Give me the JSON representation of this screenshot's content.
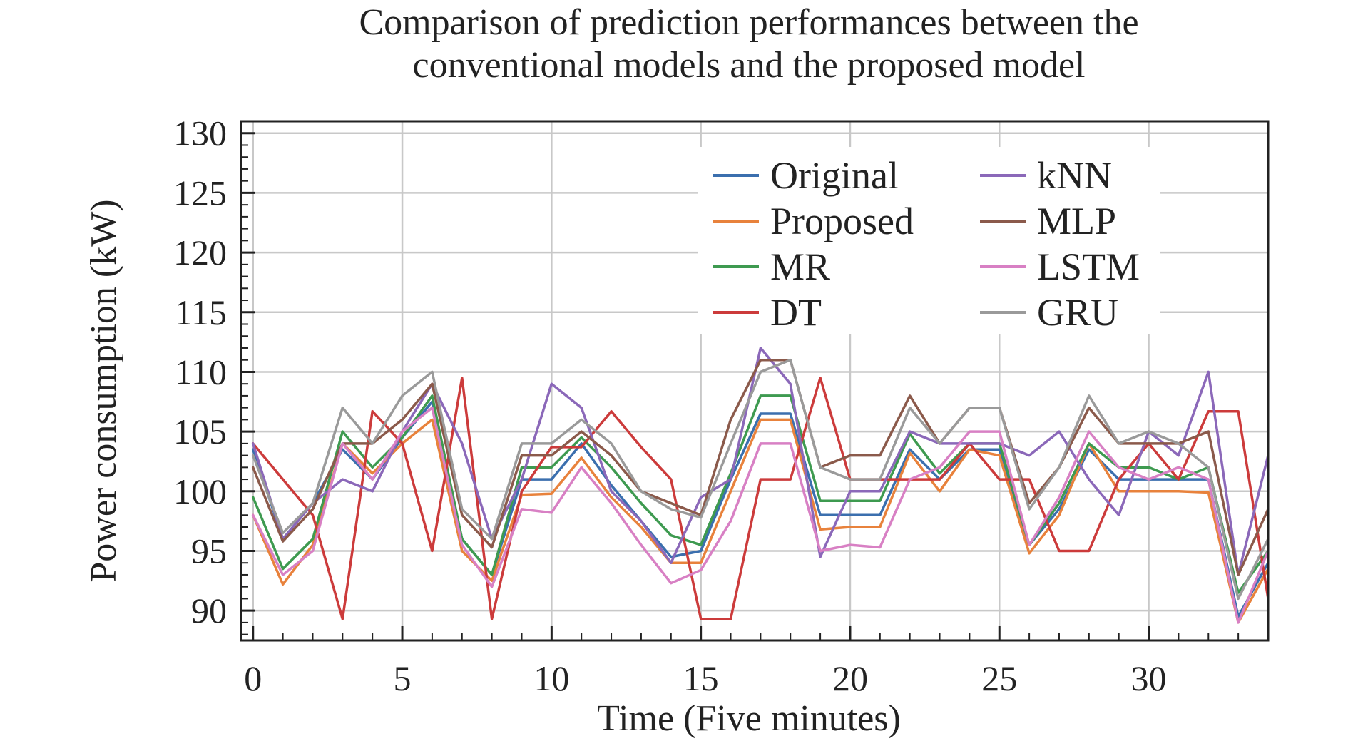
{
  "chart_data": {
    "type": "line",
    "title_lines": [
      "Comparison of prediction performances between the",
      "conventional models and the proposed model"
    ],
    "xlabel": "Time (Five minutes)",
    "ylabel": "Power consumption (kW)",
    "xlim": [
      -0.4,
      34
    ],
    "ylim": [
      87.5,
      131
    ],
    "x_ticks": [
      0,
      5,
      10,
      15,
      20,
      25,
      30
    ],
    "y_ticks": [
      90,
      95,
      100,
      105,
      110,
      115,
      120,
      125,
      130
    ],
    "grid": true,
    "legend_position": "top-right",
    "legend_columns": 2,
    "x": [
      0,
      1,
      2,
      3,
      4,
      5,
      6,
      7,
      8,
      9,
      10,
      11,
      12,
      13,
      14,
      15,
      16,
      17,
      18,
      19,
      20,
      21,
      22,
      23,
      24,
      25,
      26,
      27,
      28,
      29,
      30,
      31,
      32,
      33,
      34
    ],
    "series": [
      {
        "name": "Original",
        "color": "#3b6fae",
        "values": [
          103.5,
          96,
          99,
          103.5,
          101,
          104.5,
          107.5,
          96,
          93,
          101,
          101,
          104,
          100.5,
          97.5,
          94.5,
          95,
          101,
          106.5,
          106.5,
          98,
          98,
          98,
          103.5,
          101,
          103.5,
          103.5,
          95.5,
          98.5,
          103.5,
          101,
          101,
          101,
          101,
          89.5,
          94
        ]
      },
      {
        "name": "Proposed",
        "color": "#e8823c",
        "values": [
          98,
          92.2,
          95.5,
          104,
          101.5,
          104,
          106,
          95,
          92.5,
          99.7,
          99.8,
          102.8,
          99.5,
          97,
          94,
          94,
          100,
          106,
          106,
          96.8,
          97,
          97,
          103.2,
          100,
          103.5,
          103,
          94.8,
          98,
          104,
          100,
          100,
          100,
          99.9,
          89,
          93.5
        ]
      },
      {
        "name": "MR",
        "color": "#3e9a50",
        "values": [
          99.5,
          93.5,
          96,
          105,
          102,
          104.5,
          108,
          96,
          93,
          102,
          102,
          104.5,
          102,
          99,
          96.3,
          95.5,
          101.5,
          108,
          108,
          99.2,
          99.2,
          99.2,
          104.8,
          101.5,
          104,
          104,
          95.5,
          99,
          104,
          102,
          102,
          101,
          102,
          91.5,
          95
        ]
      },
      {
        "name": "DT",
        "color": "#cc3b3b",
        "values": [
          104,
          101,
          98,
          89.3,
          106.7,
          104,
          95,
          109.5,
          89.3,
          100,
          103.7,
          103.7,
          106.7,
          103.7,
          101,
          89.3,
          89.3,
          101,
          101,
          109.5,
          101,
          101,
          101,
          101,
          104,
          101,
          101,
          95,
          95,
          101,
          104,
          101,
          106.7,
          106.7,
          91
        ]
      },
      {
        "name": "kNN",
        "color": "#8b68b9",
        "values": [
          104,
          96,
          99,
          101,
          100,
          105,
          109,
          104,
          96,
          101,
          109,
          107,
          100,
          97.5,
          94,
          99.5,
          101,
          112,
          109,
          94.5,
          100,
          100,
          105,
          104,
          104,
          104,
          103,
          105,
          101,
          98,
          105,
          103,
          110,
          93,
          103
        ]
      },
      {
        "name": "MLP",
        "color": "#8b5a4b",
        "values": [
          102,
          95.8,
          98.5,
          104,
          104,
          106,
          109,
          98,
          95.3,
          103,
          103,
          105,
          103,
          100,
          99,
          98,
          106,
          111,
          111,
          102,
          103,
          103,
          108,
          104,
          107,
          107,
          99,
          102,
          107,
          104,
          104,
          104,
          105,
          93,
          98.5
        ]
      },
      {
        "name": "LSTM",
        "color": "#d880c4",
        "values": [
          98,
          93,
          95,
          104,
          101,
          105,
          107,
          95.5,
          92,
          98.5,
          98.2,
          102,
          99,
          95.5,
          92.3,
          93.4,
          97.5,
          104,
          104,
          95,
          95.5,
          95.3,
          101,
          102,
          105,
          105,
          95.5,
          99.5,
          105,
          102,
          101,
          102,
          101,
          89,
          95
        ]
      },
      {
        "name": "GRU",
        "color": "#9a9a9a",
        "values": [
          103,
          96.5,
          99,
          107,
          104,
          108,
          110,
          98.5,
          96,
          104,
          104,
          106,
          104,
          100,
          98.5,
          97.8,
          104,
          110,
          111,
          102,
          101,
          101,
          107,
          104,
          107,
          107,
          98.5,
          102,
          108,
          104,
          105,
          104,
          102,
          91,
          96
        ]
      }
    ]
  }
}
